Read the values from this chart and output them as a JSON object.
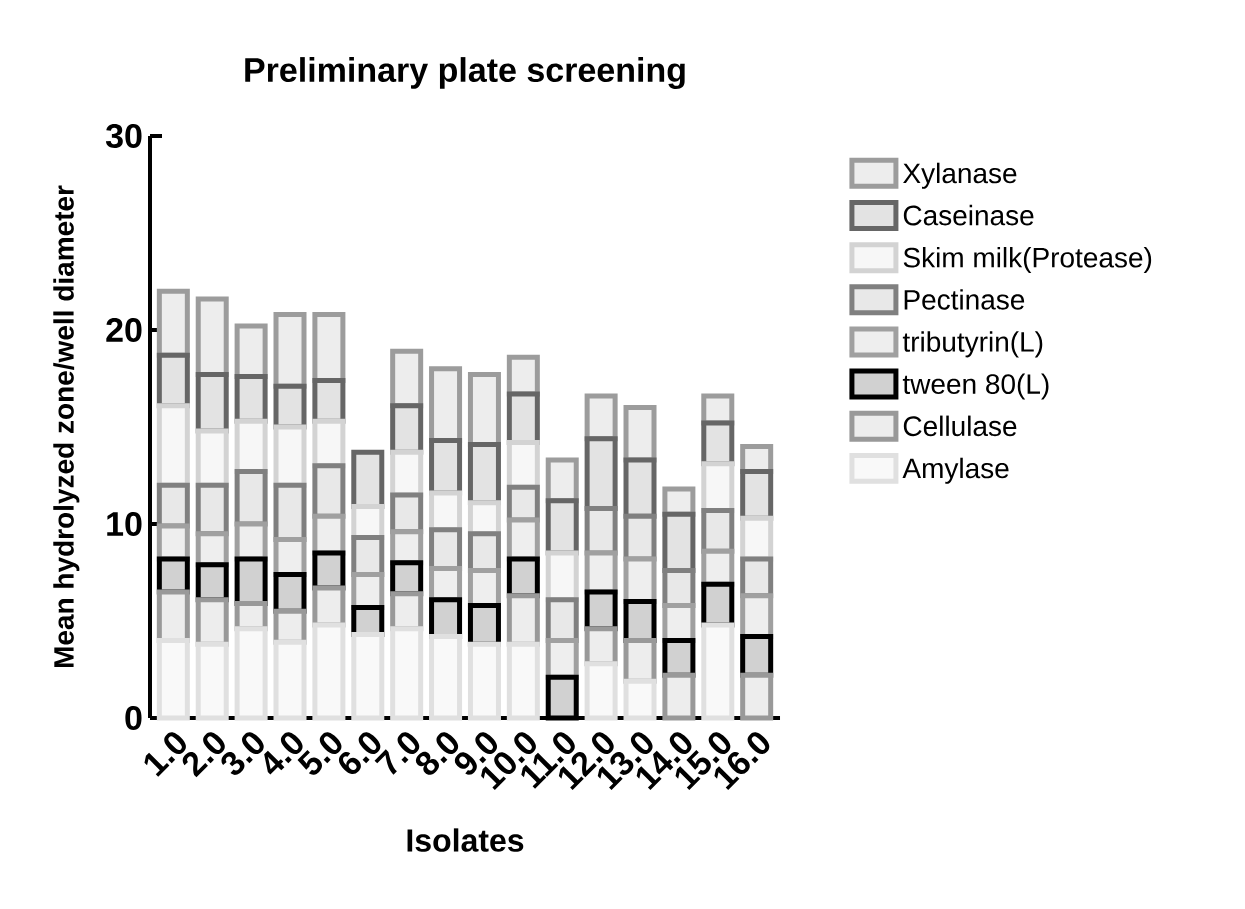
{
  "chart_data": {
    "type": "bar",
    "stacked": true,
    "title": "Preliminary plate screening",
    "xlabel": "Isolates",
    "ylabel": "Mean hydrolyzed zone/well diameter",
    "categories": [
      "1.0",
      "2.0",
      "3.0",
      "4.0",
      "5.0",
      "6.0",
      "7.0",
      "8.0",
      "9.0",
      "10.0",
      "11.0",
      "12.0",
      "13.0",
      "14.0",
      "15.0",
      "16.0"
    ],
    "series": [
      {
        "name": "Amylase",
        "color": "#e0e0e0",
        "values": [
          4.0,
          3.8,
          4.6,
          3.9,
          4.8,
          4.3,
          4.6,
          4.2,
          3.8,
          3.8,
          0,
          2.8,
          1.9,
          0,
          4.8,
          0
        ]
      },
      {
        "name": "Cellulase",
        "color": "#999999",
        "values": [
          2.5,
          2.3,
          1.3,
          1.6,
          1.9,
          0,
          1.8,
          0,
          0,
          2.5,
          0,
          1.8,
          2.1,
          2.2,
          0,
          2.2
        ]
      },
      {
        "name": "tween 80(L)",
        "color": "#000000",
        "values": [
          1.7,
          1.8,
          2.3,
          1.9,
          1.8,
          1.4,
          1.6,
          1.9,
          2.0,
          1.9,
          2.1,
          1.9,
          2.0,
          1.8,
          2.1,
          2.0
        ]
      },
      {
        "name": "tributyrin(L)",
        "color": "#a0a0a0",
        "values": [
          1.7,
          1.6,
          1.8,
          1.8,
          1.9,
          1.7,
          1.6,
          1.6,
          1.8,
          2.0,
          1.9,
          2.0,
          2.2,
          1.8,
          1.7,
          2.1
        ]
      },
      {
        "name": "Pectinase",
        "color": "#808080",
        "values": [
          2.1,
          2.5,
          2.7,
          2.8,
          2.6,
          1.9,
          1.9,
          2.0,
          1.9,
          1.7,
          2.1,
          2.3,
          2.2,
          1.8,
          2.1,
          1.9
        ]
      },
      {
        "name": "Skim milk(Protease)",
        "color": "#d3d3d3",
        "values": [
          4.1,
          2.8,
          2.6,
          3.0,
          2.3,
          1.6,
          2.2,
          1.9,
          1.6,
          2.3,
          2.4,
          0,
          0,
          0,
          2.4,
          2.1
        ]
      },
      {
        "name": "Caseinase",
        "color": "#666666",
        "values": [
          2.6,
          2.9,
          2.3,
          2.1,
          2.1,
          2.8,
          2.4,
          2.7,
          3.0,
          2.5,
          2.7,
          3.6,
          2.9,
          2.9,
          2.1,
          2.4
        ]
      },
      {
        "name": "Xylanase",
        "color": "#9c9c9c",
        "values": [
          3.3,
          3.9,
          2.6,
          3.7,
          3.4,
          0,
          2.8,
          3.7,
          3.6,
          1.9,
          2.1,
          2.2,
          2.7,
          1.3,
          1.4,
          1.3
        ]
      }
    ],
    "ylim": [
      0,
      30
    ],
    "yticks": [
      0,
      10,
      20,
      30
    ],
    "legend": "right",
    "grid": false
  }
}
